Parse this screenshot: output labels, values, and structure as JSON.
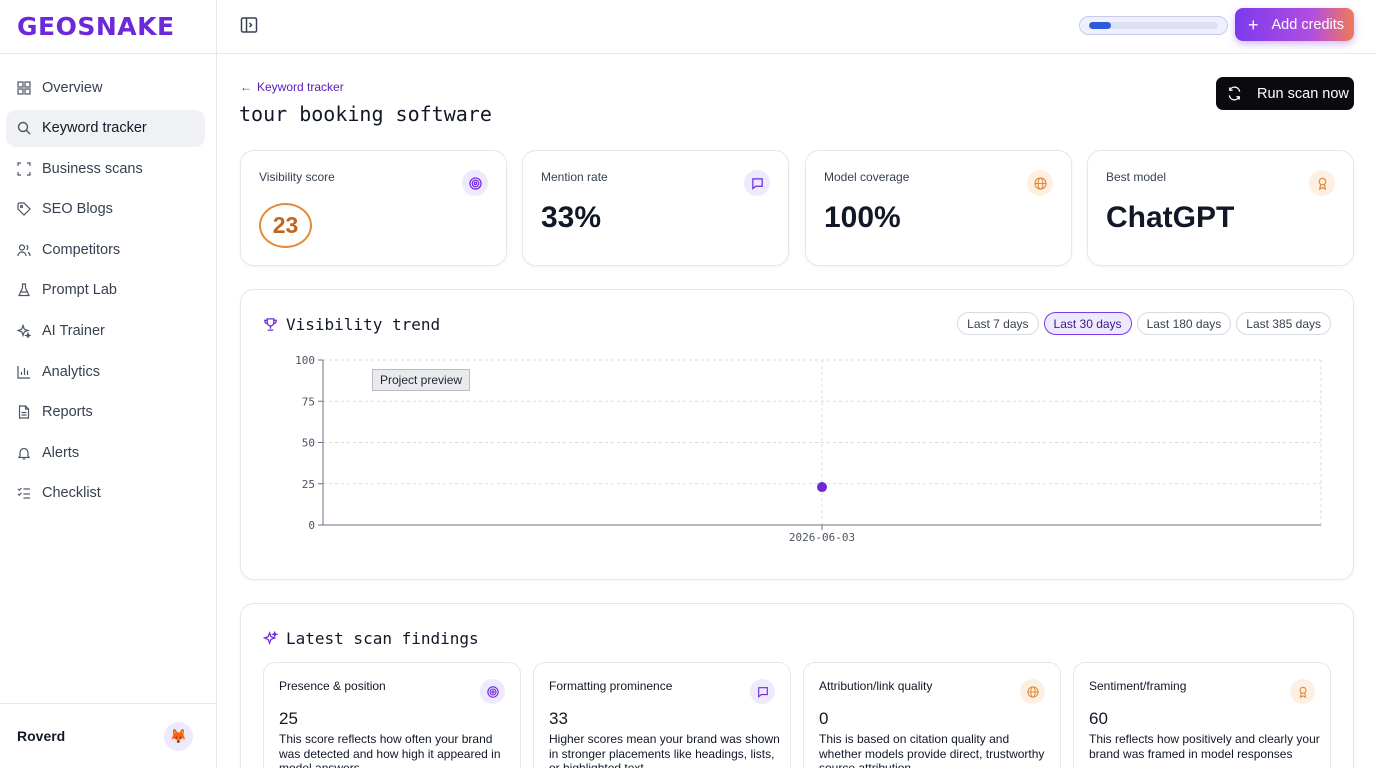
{
  "brand": {
    "name": "GEOSNAKE",
    "color": "#6d28d9"
  },
  "sidebar": {
    "items": [
      {
        "label": "Overview",
        "icon": "grid-icon"
      },
      {
        "label": "Keyword tracker",
        "icon": "search-icon",
        "active": true
      },
      {
        "label": "Business scans",
        "icon": "scan-icon"
      },
      {
        "label": "SEO Blogs",
        "icon": "tag-icon"
      },
      {
        "label": "Competitors",
        "icon": "users-icon"
      },
      {
        "label": "Prompt Lab",
        "icon": "flask-icon"
      },
      {
        "label": "AI Trainer",
        "icon": "sparkle-icon"
      },
      {
        "label": "Analytics",
        "icon": "bar-chart-icon"
      },
      {
        "label": "Reports",
        "icon": "file-icon"
      },
      {
        "label": "Alerts",
        "icon": "bell-icon"
      },
      {
        "label": "Checklist",
        "icon": "list-check-icon"
      }
    ],
    "workspace": "Roverd",
    "avatar": "🦊"
  },
  "topbar": {
    "credits_fraction": 0.17,
    "add_credits_label": "Add credits"
  },
  "page": {
    "back_label": "Keyword tracker",
    "title": "tour booking software",
    "run_scan_label": "Run scan now"
  },
  "stats": [
    {
      "label": "Visibility score",
      "value": "23",
      "icon": "target-icon",
      "accent": "#6d28d9"
    },
    {
      "label": "Mention rate",
      "value": "33%",
      "icon": "message-icon",
      "accent": "#6d28d9"
    },
    {
      "label": "Model coverage",
      "value": "100%",
      "icon": "globe-icon",
      "accent": "#e28a3b"
    },
    {
      "label": "Best model",
      "value": "ChatGPT",
      "icon": "award-icon",
      "accent": "#e28a3b"
    }
  ],
  "trend": {
    "title": "Visibility trend",
    "ranges": [
      "Last 7 days",
      "Last 30 days",
      "Last 180 days",
      "Last 385 days"
    ],
    "active_range": "Last 30 days",
    "tooltip": "Project preview"
  },
  "chart_data": {
    "type": "scatter",
    "x": [
      "2026-06-03"
    ],
    "values": [
      23
    ],
    "ylim": [
      0,
      100
    ],
    "yticks": [
      0,
      25,
      50,
      75,
      100
    ],
    "grid": true,
    "point_color": "#6d28d9"
  },
  "findings": {
    "title": "Latest scan findings",
    "items": [
      {
        "title": "Presence & position",
        "score": "25",
        "description": "This score reflects how often your brand was detected and how high it appeared in model answers",
        "icon": "target-icon"
      },
      {
        "title": "Formatting prominence",
        "score": "33",
        "description": "Higher scores mean your brand was shown in stronger placements like headings, lists, or highlighted text",
        "icon": "message-icon"
      },
      {
        "title": "Attribution/link quality",
        "score": "0",
        "description": "This is based on citation quality and whether models provide direct, trustworthy source attribution",
        "icon": "globe-icon"
      },
      {
        "title": "Sentiment/framing",
        "score": "60",
        "description": "This reflects how positively and clearly your brand was framed in model responses",
        "icon": "award-icon"
      }
    ]
  }
}
